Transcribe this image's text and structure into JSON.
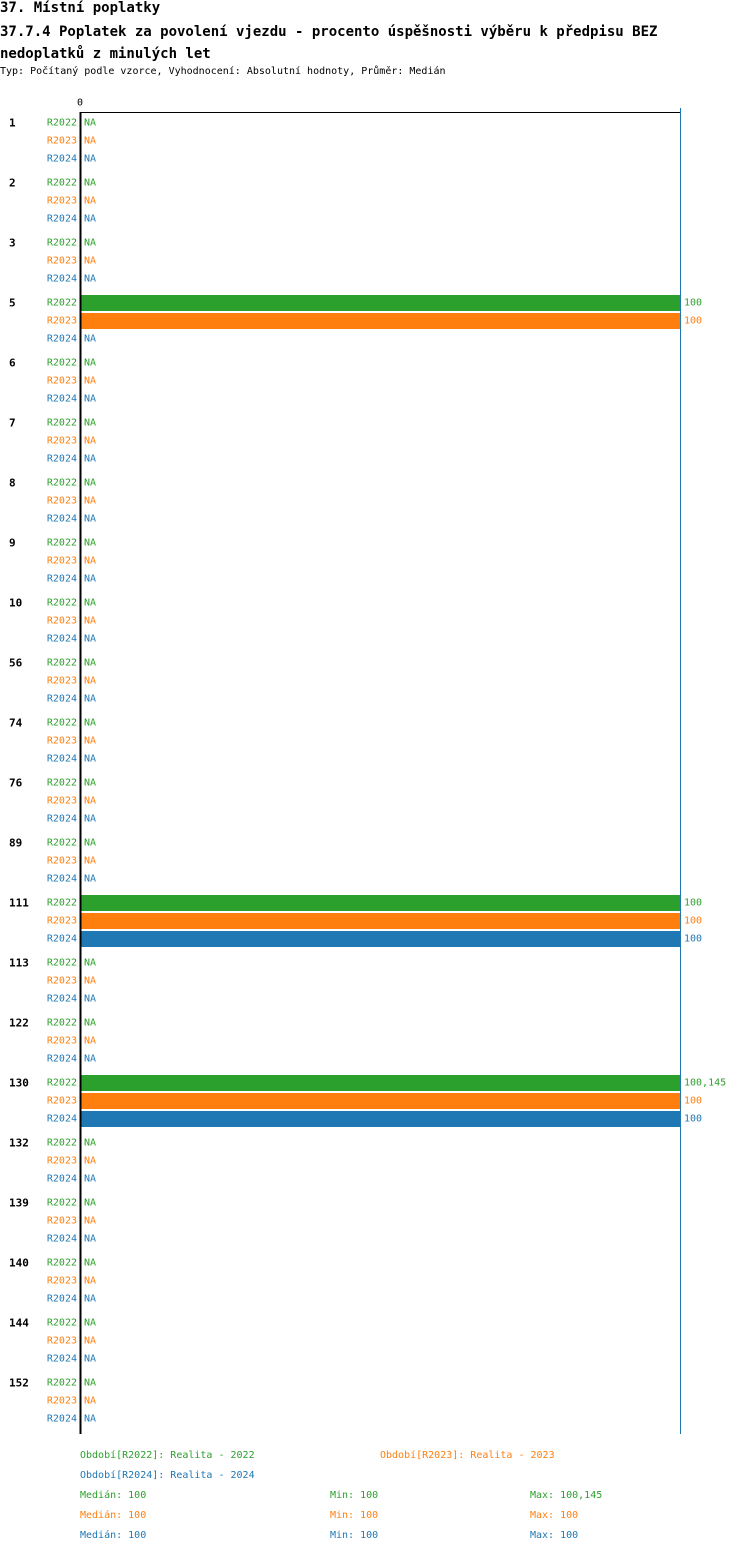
{
  "header": {
    "title": "37. Místní poplatky",
    "subtitle": "37.7.4 Poplatek za povolení vjezdu - procento úspěšnosti výběru k předpisu BEZ nedoplatků z minulých let",
    "info": "Typ: Počítaný podle vzorce, Vyhodnocení: Absolutní hodnoty, Průměr: Medián"
  },
  "colors": {
    "R2022": "#2ca02c",
    "R2023": "#ff7f0e",
    "R2024": "#1f77b4"
  },
  "chart_data": {
    "type": "bar",
    "orientation": "horizontal",
    "x_tick": "0",
    "xlim": [
      0,
      100
    ],
    "na_label": "NA",
    "categories": [
      "1",
      "2",
      "3",
      "5",
      "6",
      "7",
      "8",
      "9",
      "10",
      "56",
      "74",
      "76",
      "89",
      "111",
      "113",
      "122",
      "130",
      "132",
      "139",
      "140",
      "144",
      "152"
    ],
    "series": [
      {
        "name": "R2022",
        "values": [
          null,
          null,
          null,
          100,
          null,
          null,
          null,
          null,
          null,
          null,
          null,
          null,
          null,
          100,
          null,
          null,
          100.145,
          null,
          null,
          null,
          null,
          null
        ],
        "labels": [
          "NA",
          "NA",
          "NA",
          "100",
          "NA",
          "NA",
          "NA",
          "NA",
          "NA",
          "NA",
          "NA",
          "NA",
          "NA",
          "100",
          "NA",
          "NA",
          "100,145",
          "NA",
          "NA",
          "NA",
          "NA",
          "NA"
        ]
      },
      {
        "name": "R2023",
        "values": [
          null,
          null,
          null,
          100,
          null,
          null,
          null,
          null,
          null,
          null,
          null,
          null,
          null,
          100,
          null,
          null,
          100,
          null,
          null,
          null,
          null,
          null
        ],
        "labels": [
          "NA",
          "NA",
          "NA",
          "100",
          "NA",
          "NA",
          "NA",
          "NA",
          "NA",
          "NA",
          "NA",
          "NA",
          "NA",
          "100",
          "NA",
          "NA",
          "100",
          "NA",
          "NA",
          "NA",
          "NA",
          "NA"
        ]
      },
      {
        "name": "R2024",
        "values": [
          null,
          null,
          null,
          null,
          null,
          null,
          null,
          null,
          null,
          null,
          null,
          null,
          null,
          100,
          null,
          null,
          100,
          null,
          null,
          null,
          null,
          null
        ],
        "labels": [
          "NA",
          "NA",
          "NA",
          "NA",
          "NA",
          "NA",
          "NA",
          "NA",
          "NA",
          "NA",
          "NA",
          "NA",
          "NA",
          "100",
          "NA",
          "NA",
          "100",
          "NA",
          "NA",
          "NA",
          "NA",
          "NA"
        ]
      }
    ],
    "reference_line": {
      "series": "R2024",
      "value": 100
    }
  },
  "legend": {
    "r2022": "Období[R2022]: Realita - 2022",
    "r2023": "Období[R2023]: Realita - 2023",
    "r2024": "Období[R2024]: Realita - 2024"
  },
  "stats": [
    {
      "median": "Medián: 100",
      "min": "Min: 100",
      "max": "Max: 100,145"
    },
    {
      "median": "Medián: 100",
      "min": "Min: 100",
      "max": "Max: 100"
    },
    {
      "median": "Medián: 100",
      "min": "Min: 100",
      "max": "Max: 100"
    }
  ]
}
